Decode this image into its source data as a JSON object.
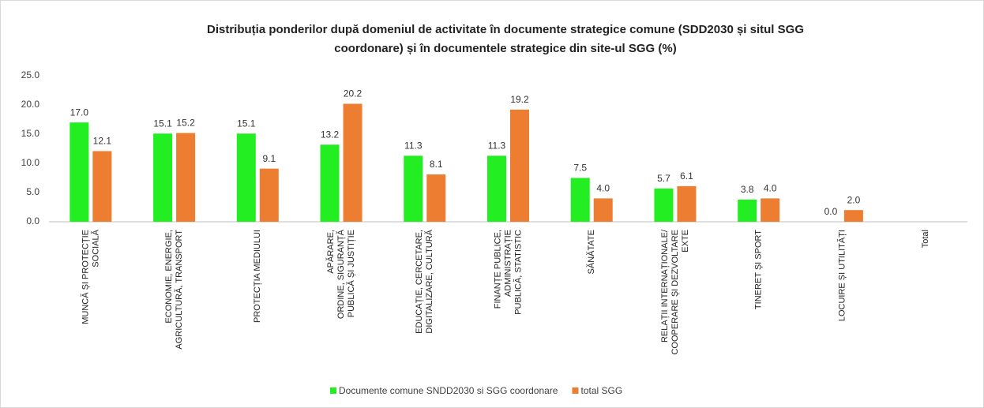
{
  "chart_data": {
    "type": "bar",
    "title": [
      "Distribuția ponderilor după domeniul de activitate în documente strategice comune (SDD2030 și situl SGG",
      "coordonare) și  în documentele strategice din site-ul SGG (%)"
    ],
    "categories": [
      [
        "MUNCĂ ȘI PROTECȚIE",
        "SOCIALĂ"
      ],
      [
        "ECONOMIE, ENERGIE,",
        "AGRICULTURĂ, TRANSPORT"
      ],
      [
        "PROTECȚIA MEDIULUI"
      ],
      [
        "APĂRARE,",
        "ORDINE, SIGURANȚĂ",
        "PUBLICĂ ȘI JUSTIȚIE"
      ],
      [
        "EDUCAȚIE, CERCETARE,",
        "DIGITALIZARE, CULTURĂ"
      ],
      [
        "FINANȚE PUBLICE,",
        "ADMINISTRAȚIE",
        "PUBLICĂ,  STATISTIC"
      ],
      [
        "SĂNĂTATE"
      ],
      [
        "RELAȚII INTERNAȚIONALE/",
        "COOPERARE ȘI DEZVOLTARE",
        "EXTE"
      ],
      [
        "TINERET ȘI SPORT"
      ],
      [
        "LOCUIRE ȘI UTILITĂȚI"
      ],
      [
        "Total"
      ]
    ],
    "series": [
      {
        "name": "Documente comune SNDD2030 si SGG coordonare",
        "color": "#22ee22",
        "values": [
          17.0,
          15.1,
          15.1,
          13.2,
          11.3,
          11.3,
          7.5,
          5.7,
          3.8,
          0.0,
          null
        ],
        "value_labels": [
          "17.0",
          "15.1",
          "15.1",
          "13.2",
          "11.3",
          "11.3",
          "7.5",
          "5.7",
          "3.8",
          "0.0",
          null
        ]
      },
      {
        "name": "total  SGG",
        "color": "#ed7d31",
        "values": [
          12.1,
          15.2,
          9.1,
          20.2,
          8.1,
          19.2,
          4.0,
          6.1,
          4.0,
          2.0,
          null
        ],
        "value_labels": [
          "12.1",
          "15.2",
          "9.1",
          "20.2",
          "8.1",
          "19.2",
          "4.0",
          "6.1",
          "4.0",
          "2.0",
          null
        ]
      }
    ],
    "ylim": [
      0,
      25
    ],
    "yticks": [
      {
        "value": 0,
        "label": "0.0"
      },
      {
        "value": 5,
        "label": "5.0"
      },
      {
        "value": 10,
        "label": "10.0"
      },
      {
        "value": 15,
        "label": "15.0"
      },
      {
        "value": 20,
        "label": "20.0"
      },
      {
        "value": 25,
        "label": "25.0"
      }
    ],
    "grid": false,
    "legend": "bottom"
  }
}
